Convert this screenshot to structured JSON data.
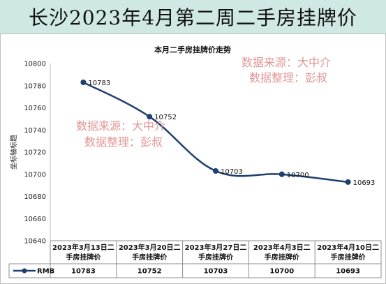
{
  "header": {
    "title": "长沙2023年4月第二周二手房挂牌价"
  },
  "watermarks": [
    [
      "数据来源：大中介",
      "数据整理：彭叔"
    ],
    [
      "数据来源：大中介",
      "数据整理：彭叔"
    ]
  ],
  "colors": {
    "line": "#1f3f6e",
    "title_band": "#cfe8e4",
    "watermark": "#e08a8a"
  },
  "chart_data": {
    "type": "line",
    "title": "本月二手房挂牌价走势",
    "ylabel": "坐标轴标题",
    "xlabel": "",
    "categories": [
      [
        "2023年3月13日二",
        "手房挂牌价"
      ],
      [
        "2023年3月20日二",
        "手房挂牌价"
      ],
      [
        "2023年3月27日二",
        "手房挂牌价"
      ],
      [
        "2023年4月3日二",
        "手房挂牌价"
      ],
      [
        "2023年4月10日二",
        "手房挂牌价"
      ]
    ],
    "series": [
      {
        "name": "RMB",
        "values": [
          10783,
          10752,
          10703,
          10700,
          10693
        ]
      }
    ],
    "ylim": [
      10640,
      10800
    ],
    "yticks": [
      10640,
      10660,
      10680,
      10700,
      10720,
      10740,
      10760,
      10780,
      10800
    ],
    "grid": false,
    "legend": "in-table",
    "data_table": true
  }
}
